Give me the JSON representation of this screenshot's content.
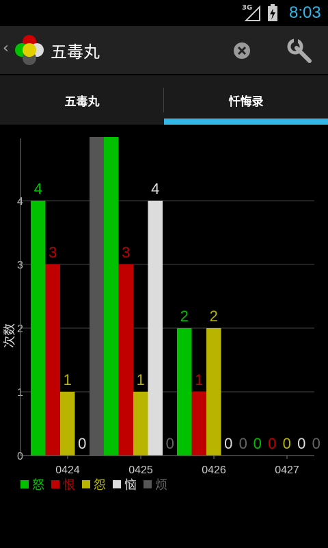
{
  "status_bar": {
    "network": "3G",
    "time": "8:03"
  },
  "action_bar": {
    "title": "五毒丸",
    "icons": [
      "back-chevron",
      "app-logo",
      "close-circle",
      "wrench"
    ]
  },
  "tabs": [
    {
      "label": "五毒丸",
      "selected": false
    },
    {
      "label": "忏悔录",
      "selected": true
    }
  ],
  "colors": {
    "accent": "#33b5e5",
    "nu": "#00c000",
    "hen": "#c00000",
    "yuan": "#b8b400",
    "nao": "#dcdcdc",
    "fan": "#555555"
  },
  "chart_data": {
    "type": "bar",
    "categories": [
      "0424",
      "0425",
      "0426",
      "0427"
    ],
    "ylabel": "次数",
    "yticks": [
      "0",
      "1",
      "2",
      "3",
      "4"
    ],
    "ylim": [
      0,
      5
    ],
    "grid": true,
    "legend_position": "bottom-left",
    "series": [
      {
        "name": "怒",
        "color": "#00c000",
        "values": [
          4,
          5,
          2,
          0
        ]
      },
      {
        "name": "恨",
        "color": "#c00000",
        "values": [
          3,
          3,
          1,
          0
        ]
      },
      {
        "name": "怨",
        "color": "#b8b400",
        "values": [
          1,
          1,
          2,
          0
        ]
      },
      {
        "name": "恼",
        "color": "#dcdcdc",
        "values": [
          0,
          4,
          0,
          0
        ]
      },
      {
        "name": "烦",
        "color": "#555555",
        "values": [
          5,
          0,
          0,
          0
        ]
      }
    ]
  }
}
